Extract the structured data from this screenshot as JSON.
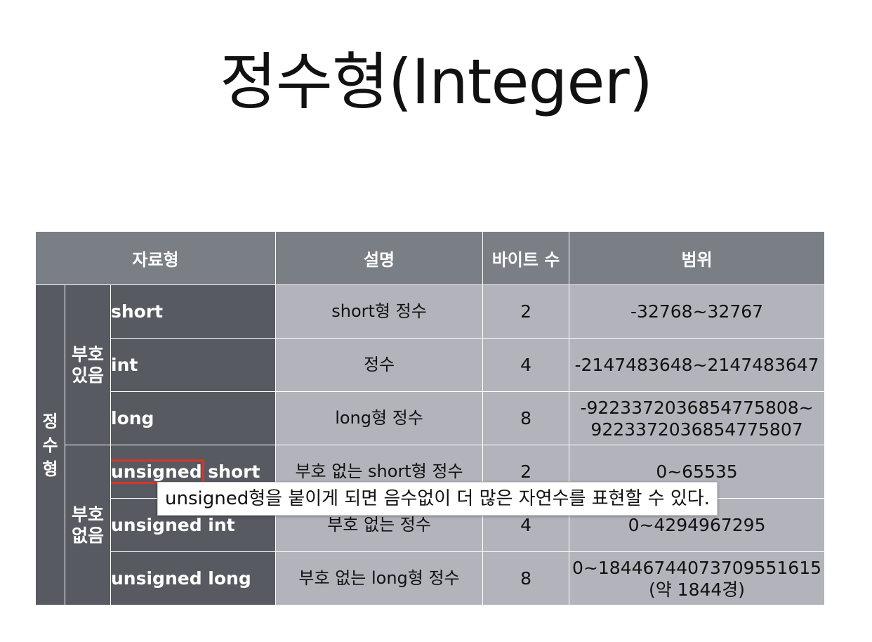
{
  "title": "정수형(Integer)",
  "table": {
    "headers": [
      "자료형",
      "설명",
      "바이트 수",
      "범위"
    ],
    "outer_group": [
      "정",
      "수",
      "형"
    ],
    "signed_group": [
      "부호",
      "있음"
    ],
    "unsigned_group": [
      "부호",
      "없음"
    ],
    "rows": [
      {
        "type": "short",
        "desc": "short형 정수",
        "bytes": "2",
        "range": [
          "-32768~32767"
        ]
      },
      {
        "type": "int",
        "desc": "정수",
        "bytes": "4",
        "range": [
          "-2147483648~2147483647"
        ]
      },
      {
        "type": "long",
        "desc": "long형 정수",
        "bytes": "8",
        "range": [
          "-9223372036854775808~",
          "9223372036854775807"
        ]
      },
      {
        "type_prefix": "unsigned",
        "type_suffix": " short",
        "desc": "부호 없는 short형 정수",
        "bytes": "2",
        "range": [
          "0~65535"
        ]
      },
      {
        "type": "unsigned int",
        "desc": "부호 없는 정수",
        "bytes": "4",
        "range": [
          "0~4294967295"
        ]
      },
      {
        "type": "unsigned long",
        "desc": "부호 없는 long형 정수",
        "bytes": "8",
        "range": [
          "0~18446744073709551615",
          "(약 1844경)"
        ]
      }
    ]
  },
  "callout": "unsigned형을 붙이게 되면 음수없이 더 많은 자연수를 표현할 수 있다.",
  "colors": {
    "header_bg": "#7a7e85",
    "dark_cell_bg": "#575a61",
    "value_cell_bg": "#b3b3bb",
    "highlight_border": "#d9352a"
  }
}
